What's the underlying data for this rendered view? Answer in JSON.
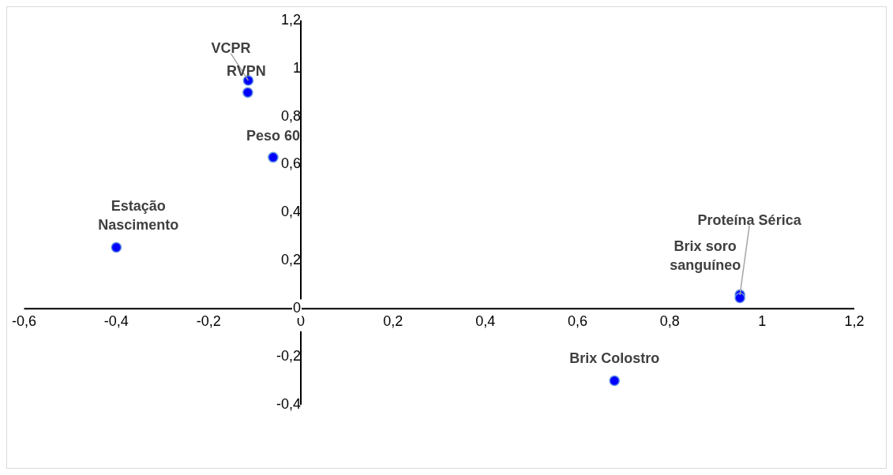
{
  "chart_data": {
    "type": "scatter",
    "marker": "circle",
    "grid": false,
    "legend": false,
    "series": [
      {
        "color": "#0000ff",
        "x": [
          -0.114,
          -0.115,
          -0.06,
          -0.4,
          0.952,
          0.952,
          0.68
        ],
        "values": [
          0.95,
          0.9,
          0.63,
          0.255,
          0.058,
          0.045,
          -0.3
        ]
      }
    ],
    "xlim": [
      -0.6,
      1.2
    ],
    "ylim": [
      -0.4,
      1.2
    ],
    "xticks": [
      {
        "value": -0.6,
        "label": "-0,6"
      },
      {
        "value": -0.4,
        "label": "-0,4"
      },
      {
        "value": -0.2,
        "label": "-0,2"
      },
      0,
      {
        "value": 0.2,
        "label": "0,2"
      },
      {
        "value": 0.4,
        "label": "0,4"
      },
      {
        "value": 0.6,
        "label": "0,6"
      },
      {
        "value": 0.8,
        "label": "0,8"
      },
      1,
      {
        "value": 1.2,
        "label": "1,2"
      }
    ],
    "yticks": [
      {
        "value": -0.4,
        "label": "-0,4"
      },
      {
        "value": -0.2,
        "label": "-0,2"
      },
      0,
      {
        "value": 0.2,
        "label": "0,2"
      },
      {
        "value": 0.4,
        "label": "0,4"
      },
      {
        "value": 0.6,
        "label": "0,6"
      },
      {
        "value": 0.8,
        "label": "0,8"
      },
      1,
      {
        "value": 1.2,
        "label": "1,2"
      }
    ],
    "annotations": [
      {
        "text": "VCPR",
        "x": -0.114,
        "y": 0.95
      },
      {
        "text": "RVPN",
        "x": -0.115,
        "y": 0.9
      },
      {
        "text": "Peso 60",
        "x": -0.06,
        "y": 0.63
      },
      {
        "text": "Estação Nascimento",
        "x": -0.4,
        "y": 0.255
      },
      {
        "text": "Proteína Sérica",
        "x": 0.952,
        "y": 0.058
      },
      {
        "text": "Brix soro sanguíneo",
        "x": 0.952,
        "y": 0.045
      },
      {
        "text": "Brix Colostro",
        "x": 0.68,
        "y": -0.3
      }
    ]
  }
}
